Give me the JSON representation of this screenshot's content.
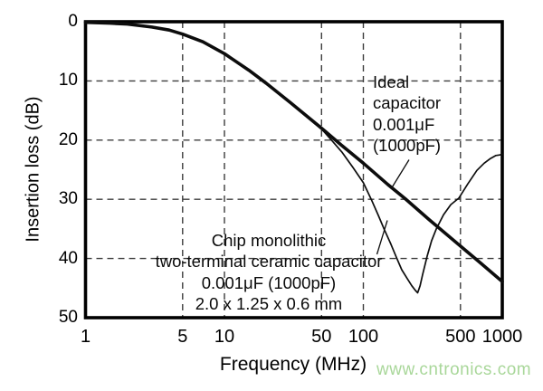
{
  "watermark": {
    "text": "www.cntronics.com",
    "color": "#a9d79a"
  },
  "colors": {
    "curve": "#0d0d0d",
    "border": "#000000",
    "grid": "#3c3c3c",
    "background": "#ffffff"
  },
  "chart_data": {
    "type": "line",
    "title": "",
    "xlabel": "Frequency (MHz)",
    "ylabel": "Insertion loss (dB)",
    "x_scale": "log",
    "xlim": [
      1,
      1000
    ],
    "ylim": [
      0,
      50
    ],
    "y_axis_inverted": true,
    "grid": "dashed",
    "x_ticks": [
      1,
      5,
      10,
      50,
      100,
      500,
      1000
    ],
    "y_ticks": [
      0,
      10,
      20,
      30,
      40,
      50
    ],
    "x_gridlines": [
      5,
      10,
      50,
      100,
      500
    ],
    "y_gridlines": [
      10,
      20,
      30,
      40
    ],
    "series": [
      {
        "name": "ideal-capacitor",
        "label": "Ideal capacitor 0.001μF (1000pF)",
        "stroke_width": 3.6,
        "points": [
          [
            1,
            0.1
          ],
          [
            1.5,
            0.25
          ],
          [
            2,
            0.4
          ],
          [
            3,
            0.9
          ],
          [
            4,
            1.4
          ],
          [
            5,
            2.1
          ],
          [
            7,
            3.4
          ],
          [
            10,
            5.4
          ],
          [
            15,
            8.2
          ],
          [
            20,
            10.4
          ],
          [
            30,
            13.7
          ],
          [
            50,
            18.0
          ],
          [
            70,
            20.9
          ],
          [
            100,
            23.9
          ],
          [
            150,
            27.5
          ],
          [
            200,
            29.9
          ],
          [
            300,
            33.5
          ],
          [
            500,
            37.9
          ],
          [
            700,
            40.8
          ],
          [
            1000,
            43.9
          ]
        ]
      },
      {
        "name": "ceramic-capacitor",
        "label": "Chip monolithic two-terminal ceramic capacitor 0.001μF (1000pF) 2.0 x 1.25 x 0.6 mm",
        "stroke_width": 1.7,
        "points": [
          [
            1,
            0.1
          ],
          [
            1.5,
            0.25
          ],
          [
            2,
            0.4
          ],
          [
            3,
            0.9
          ],
          [
            4,
            1.4
          ],
          [
            5,
            2.1
          ],
          [
            7,
            3.4
          ],
          [
            10,
            5.4
          ],
          [
            15,
            8.2
          ],
          [
            20,
            10.4
          ],
          [
            30,
            13.7
          ],
          [
            50,
            18.1
          ],
          [
            59,
            20.0
          ],
          [
            70,
            22.0
          ],
          [
            84,
            24.6
          ],
          [
            100,
            27.2
          ],
          [
            114,
            30.0
          ],
          [
            128,
            32.7
          ],
          [
            142,
            35.2
          ],
          [
            158,
            37.6
          ],
          [
            173,
            39.8
          ],
          [
            189,
            41.9
          ],
          [
            207,
            43.4
          ],
          [
            223,
            44.6
          ],
          [
            237,
            45.4
          ],
          [
            246,
            45.8
          ],
          [
            256,
            44.6
          ],
          [
            267,
            42.7
          ],
          [
            288,
            39.6
          ],
          [
            310,
            37.0
          ],
          [
            335,
            35.0
          ],
          [
            378,
            32.6
          ],
          [
            426,
            30.9
          ],
          [
            487,
            29.8
          ],
          [
            565,
            27.4
          ],
          [
            657,
            25.1
          ],
          [
            741,
            23.9
          ],
          [
            823,
            23.1
          ],
          [
            900,
            22.6
          ],
          [
            957,
            22.5
          ],
          [
            1000,
            22.4
          ]
        ]
      }
    ],
    "annotations": [
      {
        "id": "ideal-capacitor-label",
        "lines": [
          "Ideal",
          "capacitor",
          "0.001μF",
          "(1000pF)"
        ]
      },
      {
        "id": "ceramic-capacitor-label",
        "lines": [
          "Chip monolithic",
          "two-terminal ceramic capacitor",
          "0.001μF (1000pF)",
          "2.0 x 1.25 x 0.6 mm"
        ]
      }
    ]
  }
}
